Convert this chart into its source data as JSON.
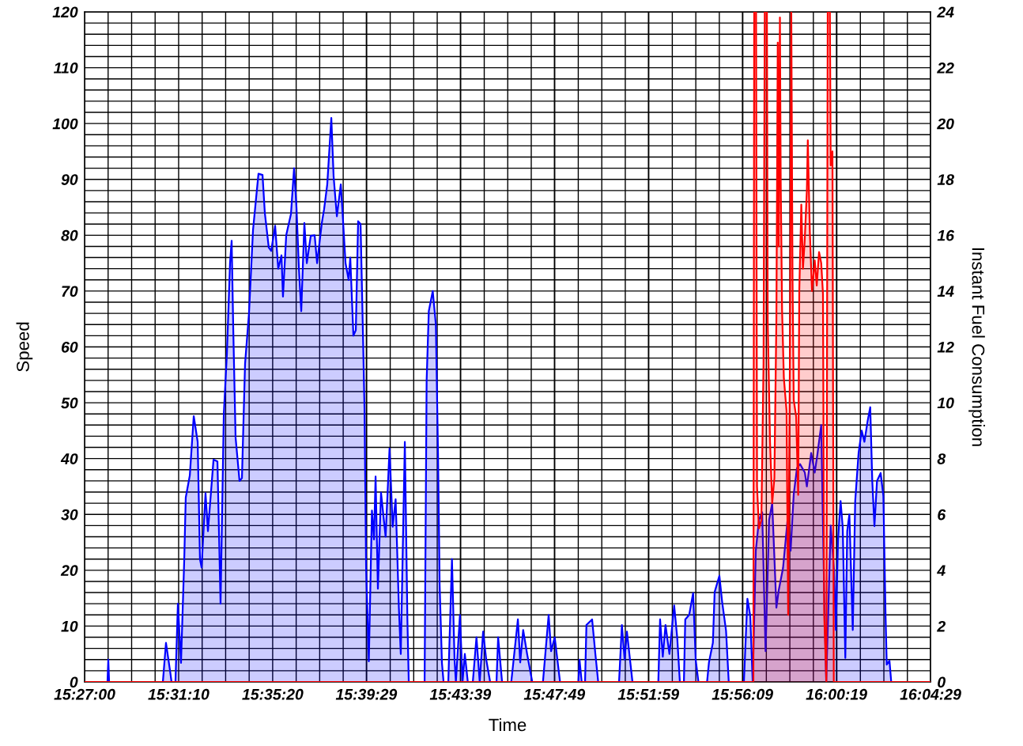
{
  "chart_data": {
    "type": "area",
    "xlabel": "Time",
    "ylabel": "Speed",
    "y2label": "Instant Fuel Consumption",
    "xlim": [
      15.45,
      16.074722
    ],
    "xticks": [
      {
        "value": 15.45,
        "label": "15:27:00"
      },
      {
        "value": 15.519444,
        "label": "15:31:10"
      },
      {
        "value": 15.588889,
        "label": "15:35:20"
      },
      {
        "value": 15.658056,
        "label": "15:39:29"
      },
      {
        "value": 15.7275,
        "label": "15:43:39"
      },
      {
        "value": 15.796944,
        "label": "15:47:49"
      },
      {
        "value": 15.866389,
        "label": "15:51:59"
      },
      {
        "value": 15.935833,
        "label": "15:56:09"
      },
      {
        "value": 16.005278,
        "label": "16:00:19"
      },
      {
        "value": 16.074722,
        "label": "16:04:29"
      }
    ],
    "ylim": [
      0,
      120
    ],
    "yticks": [
      0,
      10,
      20,
      30,
      40,
      50,
      60,
      70,
      80,
      90,
      100,
      110,
      120
    ],
    "y2lim": [
      0,
      24
    ],
    "y2ticks": [
      0,
      2,
      4,
      6,
      8,
      10,
      12,
      14,
      16,
      18,
      20,
      22,
      24
    ],
    "grid": true,
    "marker": "none",
    "line_style": "solid",
    "series": [
      {
        "color": "#0000ff",
        "x": [
          15.45,
          15.4669,
          15.4675,
          15.4681,
          15.5078,
          15.5101,
          15.5131,
          15.5142,
          15.5171,
          15.5189,
          15.5212,
          15.5236,
          15.5247,
          15.5277,
          15.5306,
          15.5335,
          15.5352,
          15.5364,
          15.5393,
          15.5411,
          15.5452,
          15.5481,
          15.5504,
          15.5528,
          15.5551,
          15.5574,
          15.5586,
          15.5598,
          15.5615,
          15.5644,
          15.5662,
          15.5685,
          15.5714,
          15.5744,
          15.5784,
          15.5814,
          15.5831,
          15.586,
          15.5878,
          15.5907,
          15.593,
          15.5954,
          15.5965,
          15.5989,
          15.6024,
          15.6047,
          15.6065,
          15.6082,
          15.61,
          15.6123,
          15.6141,
          15.617,
          15.6199,
          15.6217,
          15.6252,
          15.6269,
          15.6292,
          15.6322,
          15.6339,
          15.6363,
          15.6392,
          15.6403,
          15.6427,
          15.645,
          15.6462,
          15.6485,
          15.6503,
          15.652,
          15.6538,
          15.6555,
          15.6567,
          15.6579,
          15.6599,
          15.6622,
          15.6637,
          15.6649,
          15.6666,
          15.6689,
          15.6723,
          15.6752,
          15.6775,
          15.6797,
          15.6821,
          15.6835,
          15.6865,
          15.6884,
          15.6894,
          15.7011,
          15.7026,
          15.7042,
          15.7071,
          15.7094,
          15.711,
          15.7122,
          15.7139,
          15.7151,
          15.7186,
          15.7213,
          15.7232,
          15.7242,
          15.7272,
          15.7291,
          15.7308,
          15.733,
          15.7367,
          15.7394,
          15.7418,
          15.7443,
          15.7466,
          15.7495,
          15.7542,
          15.7554,
          15.7583,
          15.7651,
          15.77,
          15.7717,
          15.7739,
          15.7768,
          15.7806,
          15.7885,
          15.7927,
          15.7945,
          15.7972,
          15.8011,
          15.8147,
          15.8155,
          15.8171,
          15.8196,
          15.8206,
          15.8248,
          15.8272,
          15.8293,
          15.8447,
          15.8468,
          15.8488,
          15.8505,
          15.8546,
          15.8737,
          15.875,
          15.877,
          15.879,
          15.8819,
          15.8854,
          15.8877,
          15.8896,
          15.8926,
          15.8936,
          15.8965,
          15.8994,
          15.9013,
          15.9033,
          15.9097,
          15.9111,
          15.914,
          15.9153,
          15.9188,
          15.9208,
          15.9237,
          15.9257,
          15.9369,
          15.9395,
          15.9416,
          15.9434,
          15.9457,
          15.948,
          15.9504,
          15.9529,
          15.9555,
          15.9578,
          15.9609,
          15.9626,
          15.9658,
          15.9691,
          15.9714,
          15.9737,
          15.9761,
          15.9784,
          15.9819,
          15.9834,
          15.9866,
          15.9892,
          15.9912,
          15.994,
          15.9962,
          15.9977,
          16.001,
          16.0035,
          16.0048,
          16.0064,
          16.0083,
          16.0099,
          16.0118,
          16.0132,
          16.0148,
          16.0173,
          16.0191,
          16.0216,
          16.0239,
          16.0259,
          16.0282,
          16.0302,
          16.0317,
          16.0333,
          16.0352,
          16.0379,
          16.0399,
          16.0415,
          16.0424,
          16.0444,
          16.0457,
          16.0747
        ],
        "values": [
          0,
          0,
          4,
          0,
          0,
          7,
          2,
          0,
          0,
          14,
          3.4,
          22,
          33,
          37,
          47.6,
          43,
          22,
          20.5,
          33.8,
          27,
          39.8,
          39.5,
          14,
          48,
          58.8,
          75,
          79,
          63,
          43.8,
          36,
          36.5,
          57,
          66,
          81,
          91,
          90.8,
          84,
          77.8,
          77.2,
          81.7,
          74,
          76.4,
          69,
          80,
          83.8,
          92,
          84.9,
          74.4,
          66.4,
          82.2,
          75,
          79.9,
          80,
          75,
          82.2,
          84.7,
          89.1,
          101,
          90.5,
          83.4,
          89.1,
          84.9,
          75,
          72,
          76,
          62,
          63,
          82.5,
          82,
          63,
          49,
          20.5,
          3.7,
          30.7,
          25.5,
          36.8,
          16.7,
          33.9,
          26,
          41.8,
          27.8,
          32.7,
          13.3,
          5,
          43,
          11,
          0,
          0,
          54,
          66.4,
          70,
          64,
          41,
          17.3,
          3.4,
          0,
          0,
          22,
          4,
          0,
          12,
          0,
          5,
          0,
          0,
          8,
          0,
          9,
          4,
          0,
          0,
          8,
          0,
          0,
          11.2,
          3.5,
          9.3,
          5,
          0,
          0,
          12,
          5.5,
          8,
          0,
          0,
          4,
          0,
          0,
          10.2,
          11.2,
          5,
          0,
          0,
          10.2,
          4,
          9,
          0,
          0,
          11.2,
          4.5,
          10.2,
          5,
          13.7,
          7.8,
          0,
          0,
          11.2,
          12,
          15.9,
          4,
          0,
          0,
          3.5,
          7,
          16.1,
          19,
          14.4,
          9.2,
          0,
          0,
          14.9,
          11.8,
          0,
          23.5,
          29,
          30.4,
          5.5,
          29,
          32,
          13.3,
          16.4,
          20.4,
          28.9,
          23.5,
          33.6,
          38.3,
          39,
          37.5,
          35,
          41,
          37.5,
          40.8,
          46,
          15.7,
          0,
          28,
          20,
          9.3,
          25.4,
          32.4,
          27.6,
          4.3,
          27,
          30,
          9.3,
          32.4,
          41,
          45,
          43,
          46.6,
          49.2,
          36,
          27.9,
          36,
          37.4,
          33.3,
          12,
          3.1,
          3.8,
          0,
          0
        ]
      },
      {
        "axis": "y2",
        "color": "#ff0000",
        "x": [
          15.45,
          15.9439,
          15.9445,
          15.9459,
          15.9466,
          15.948,
          15.9498,
          15.9514,
          15.9523,
          15.9539,
          15.9545,
          15.9562,
          15.9578,
          15.9594,
          15.9609,
          15.9619,
          15.9626,
          15.9635,
          15.9641,
          15.9651,
          15.9664,
          15.9684,
          15.9696,
          15.9709,
          15.9719,
          15.9728,
          15.9737,
          15.9755,
          15.977,
          15.9778,
          15.9793,
          15.9805,
          15.9818,
          15.9834,
          15.9841,
          15.9856,
          15.9872,
          15.9892,
          15.9907,
          15.9924,
          15.994,
          15.9953,
          15.9962,
          15.9978,
          15.9988,
          16.0004,
          16.001,
          16.0023,
          16.0033,
          16.0747
        ],
        "values": [
          0,
          0,
          24,
          24,
          7,
          5.5,
          5.8,
          11.4,
          24,
          24,
          12.9,
          8.6,
          6.4,
          7.3,
          13,
          22.9,
          15.6,
          23.8,
          17.9,
          13.3,
          10.9,
          9.7,
          2.4,
          11.7,
          24,
          14.5,
          10.1,
          9.5,
          6.7,
          14,
          17.1,
          14.8,
          15.8,
          17.6,
          19.4,
          16.1,
          14,
          15.1,
          14.2,
          15.4,
          15,
          13.9,
          2.4,
          0,
          24,
          24,
          18.5,
          19,
          0,
          0
        ]
      }
    ]
  }
}
